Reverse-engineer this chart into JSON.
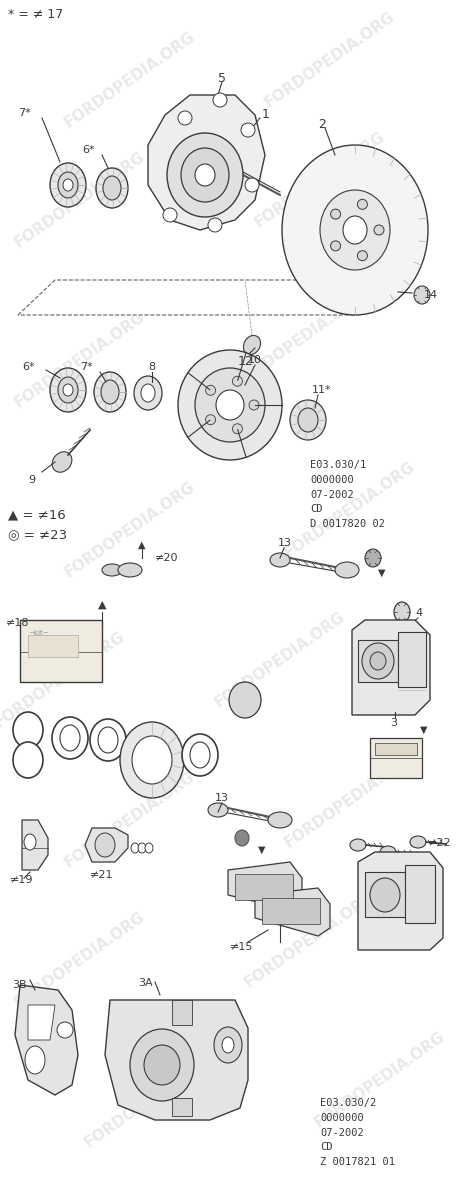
{
  "bg_color": "#ffffff",
  "figsize": [
    4.63,
    11.91
  ],
  "dpi": 100,
  "watermark_text": "FORDOPEDIA.ORG",
  "watermark_color": "#c0c0c0",
  "header_text": "* = ≠ 17",
  "diagram1_code": "E03.030/1\n0000000\n07-2002\nCD\nD 0017820 02",
  "diagram2_code": "E03.030/2\n0000000\n07-2002\nCD\nZ 0017821 01",
  "legend1": "▲ = ≠16",
  "legend2": "◎ = ≠23",
  "line_color": "#3a3a3a",
  "text_color": "#3a3a3a",
  "light_gray": "#d8d8d8",
  "mid_gray": "#b0b0b0",
  "dark_gray": "#808080"
}
